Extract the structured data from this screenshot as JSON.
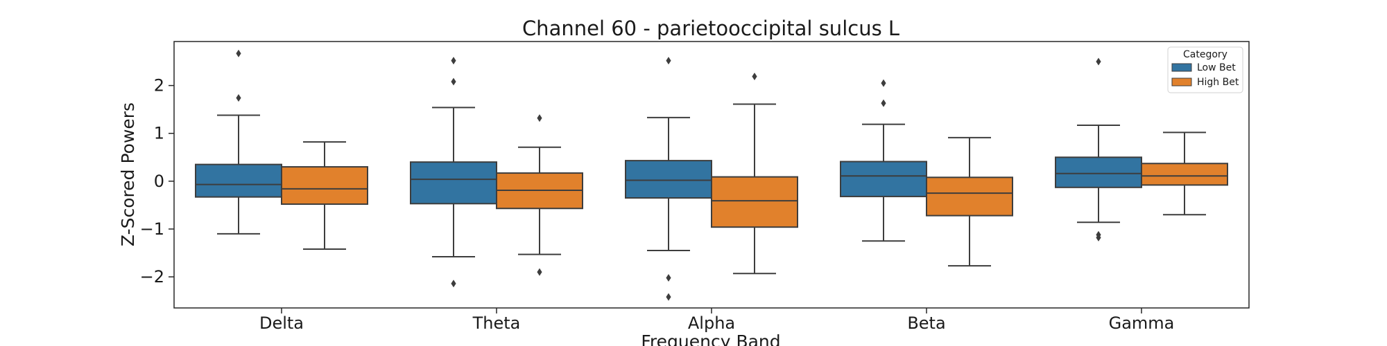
{
  "chart_data": {
    "type": "box",
    "title": "Channel 60 - parietooccipital sulcus L",
    "xlabel": "Frequency Band",
    "ylabel": "Z-Scored Powers",
    "categories": [
      "Delta",
      "Theta",
      "Alpha",
      "Beta",
      "Gamma"
    ],
    "ylim": [
      -2.65,
      2.92
    ],
    "yticks": [
      -2,
      -1,
      0,
      1,
      2
    ],
    "ytick_labels": [
      "−2",
      "−1",
      "0",
      "1",
      "2"
    ],
    "grid": false,
    "legend": {
      "title": "Category",
      "position": "top-right"
    },
    "series": [
      {
        "name": "Low Bet",
        "color": "#3274a1",
        "boxes": [
          {
            "whislo": -1.1,
            "q1": -0.33,
            "med": -0.07,
            "q3": 0.35,
            "whishi": 1.38,
            "fliers": [
              2.67,
              1.74
            ]
          },
          {
            "whislo": -1.58,
            "q1": -0.47,
            "med": 0.04,
            "q3": 0.4,
            "whishi": 1.54,
            "fliers": [
              2.52,
              2.08,
              -2.14
            ]
          },
          {
            "whislo": -1.45,
            "q1": -0.35,
            "med": 0.02,
            "q3": 0.43,
            "whishi": 1.33,
            "fliers": [
              2.52,
              -2.02,
              -2.42
            ]
          },
          {
            "whislo": -1.25,
            "q1": -0.32,
            "med": 0.11,
            "q3": 0.41,
            "whishi": 1.19,
            "fliers": [
              2.05,
              1.63
            ]
          },
          {
            "whislo": -0.86,
            "q1": -0.13,
            "med": 0.16,
            "q3": 0.5,
            "whishi": 1.17,
            "fliers": [
              2.5,
              -1.12,
              -1.18
            ]
          }
        ]
      },
      {
        "name": "High Bet",
        "color": "#e1812c",
        "boxes": [
          {
            "whislo": -1.42,
            "q1": -0.48,
            "med": -0.16,
            "q3": 0.3,
            "whishi": 0.82,
            "fliers": []
          },
          {
            "whislo": -1.53,
            "q1": -0.57,
            "med": -0.19,
            "q3": 0.17,
            "whishi": 0.71,
            "fliers": [
              1.32,
              -1.9
            ]
          },
          {
            "whislo": -1.93,
            "q1": -0.96,
            "med": -0.41,
            "q3": 0.09,
            "whishi": 1.61,
            "fliers": [
              2.19
            ]
          },
          {
            "whislo": -1.77,
            "q1": -0.72,
            "med": -0.25,
            "q3": 0.08,
            "whishi": 0.91,
            "fliers": []
          },
          {
            "whislo": -0.7,
            "q1": -0.08,
            "med": 0.11,
            "q3": 0.37,
            "whishi": 1.02,
            "fliers": []
          }
        ]
      }
    ]
  }
}
